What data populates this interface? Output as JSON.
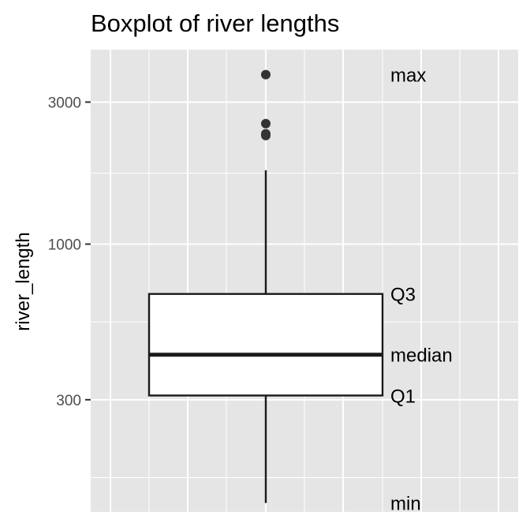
{
  "chart_data": {
    "type": "boxplot",
    "title": "Boxplot of river lengths",
    "xlabel": "",
    "ylabel": "river_length",
    "y_scale": "log10",
    "ylim": [
      126,
      4500
    ],
    "y_ticks": [
      300,
      1000,
      3000
    ],
    "y_tick_labels": [
      "300",
      "1000",
      "3000"
    ],
    "grid": true,
    "box": {
      "min": 135,
      "q1": 310,
      "median": 425,
      "q3": 680,
      "whisker_high": 1770,
      "max": 3710
    },
    "outliers": [
      3710,
      2540,
      2348,
      2315
    ],
    "annotations": [
      {
        "label": "max",
        "value": 3710
      },
      {
        "label": "Q3",
        "value": 680
      },
      {
        "label": "median",
        "value": 425
      },
      {
        "label": "Q1",
        "value": 310
      },
      {
        "label": "min",
        "value": 135
      }
    ],
    "colors": {
      "panel_background": "#e5e5e5",
      "grid": "#ffffff",
      "box_fill": "#ffffff",
      "box_stroke": "#1a1a1a",
      "point": "#333333"
    }
  }
}
